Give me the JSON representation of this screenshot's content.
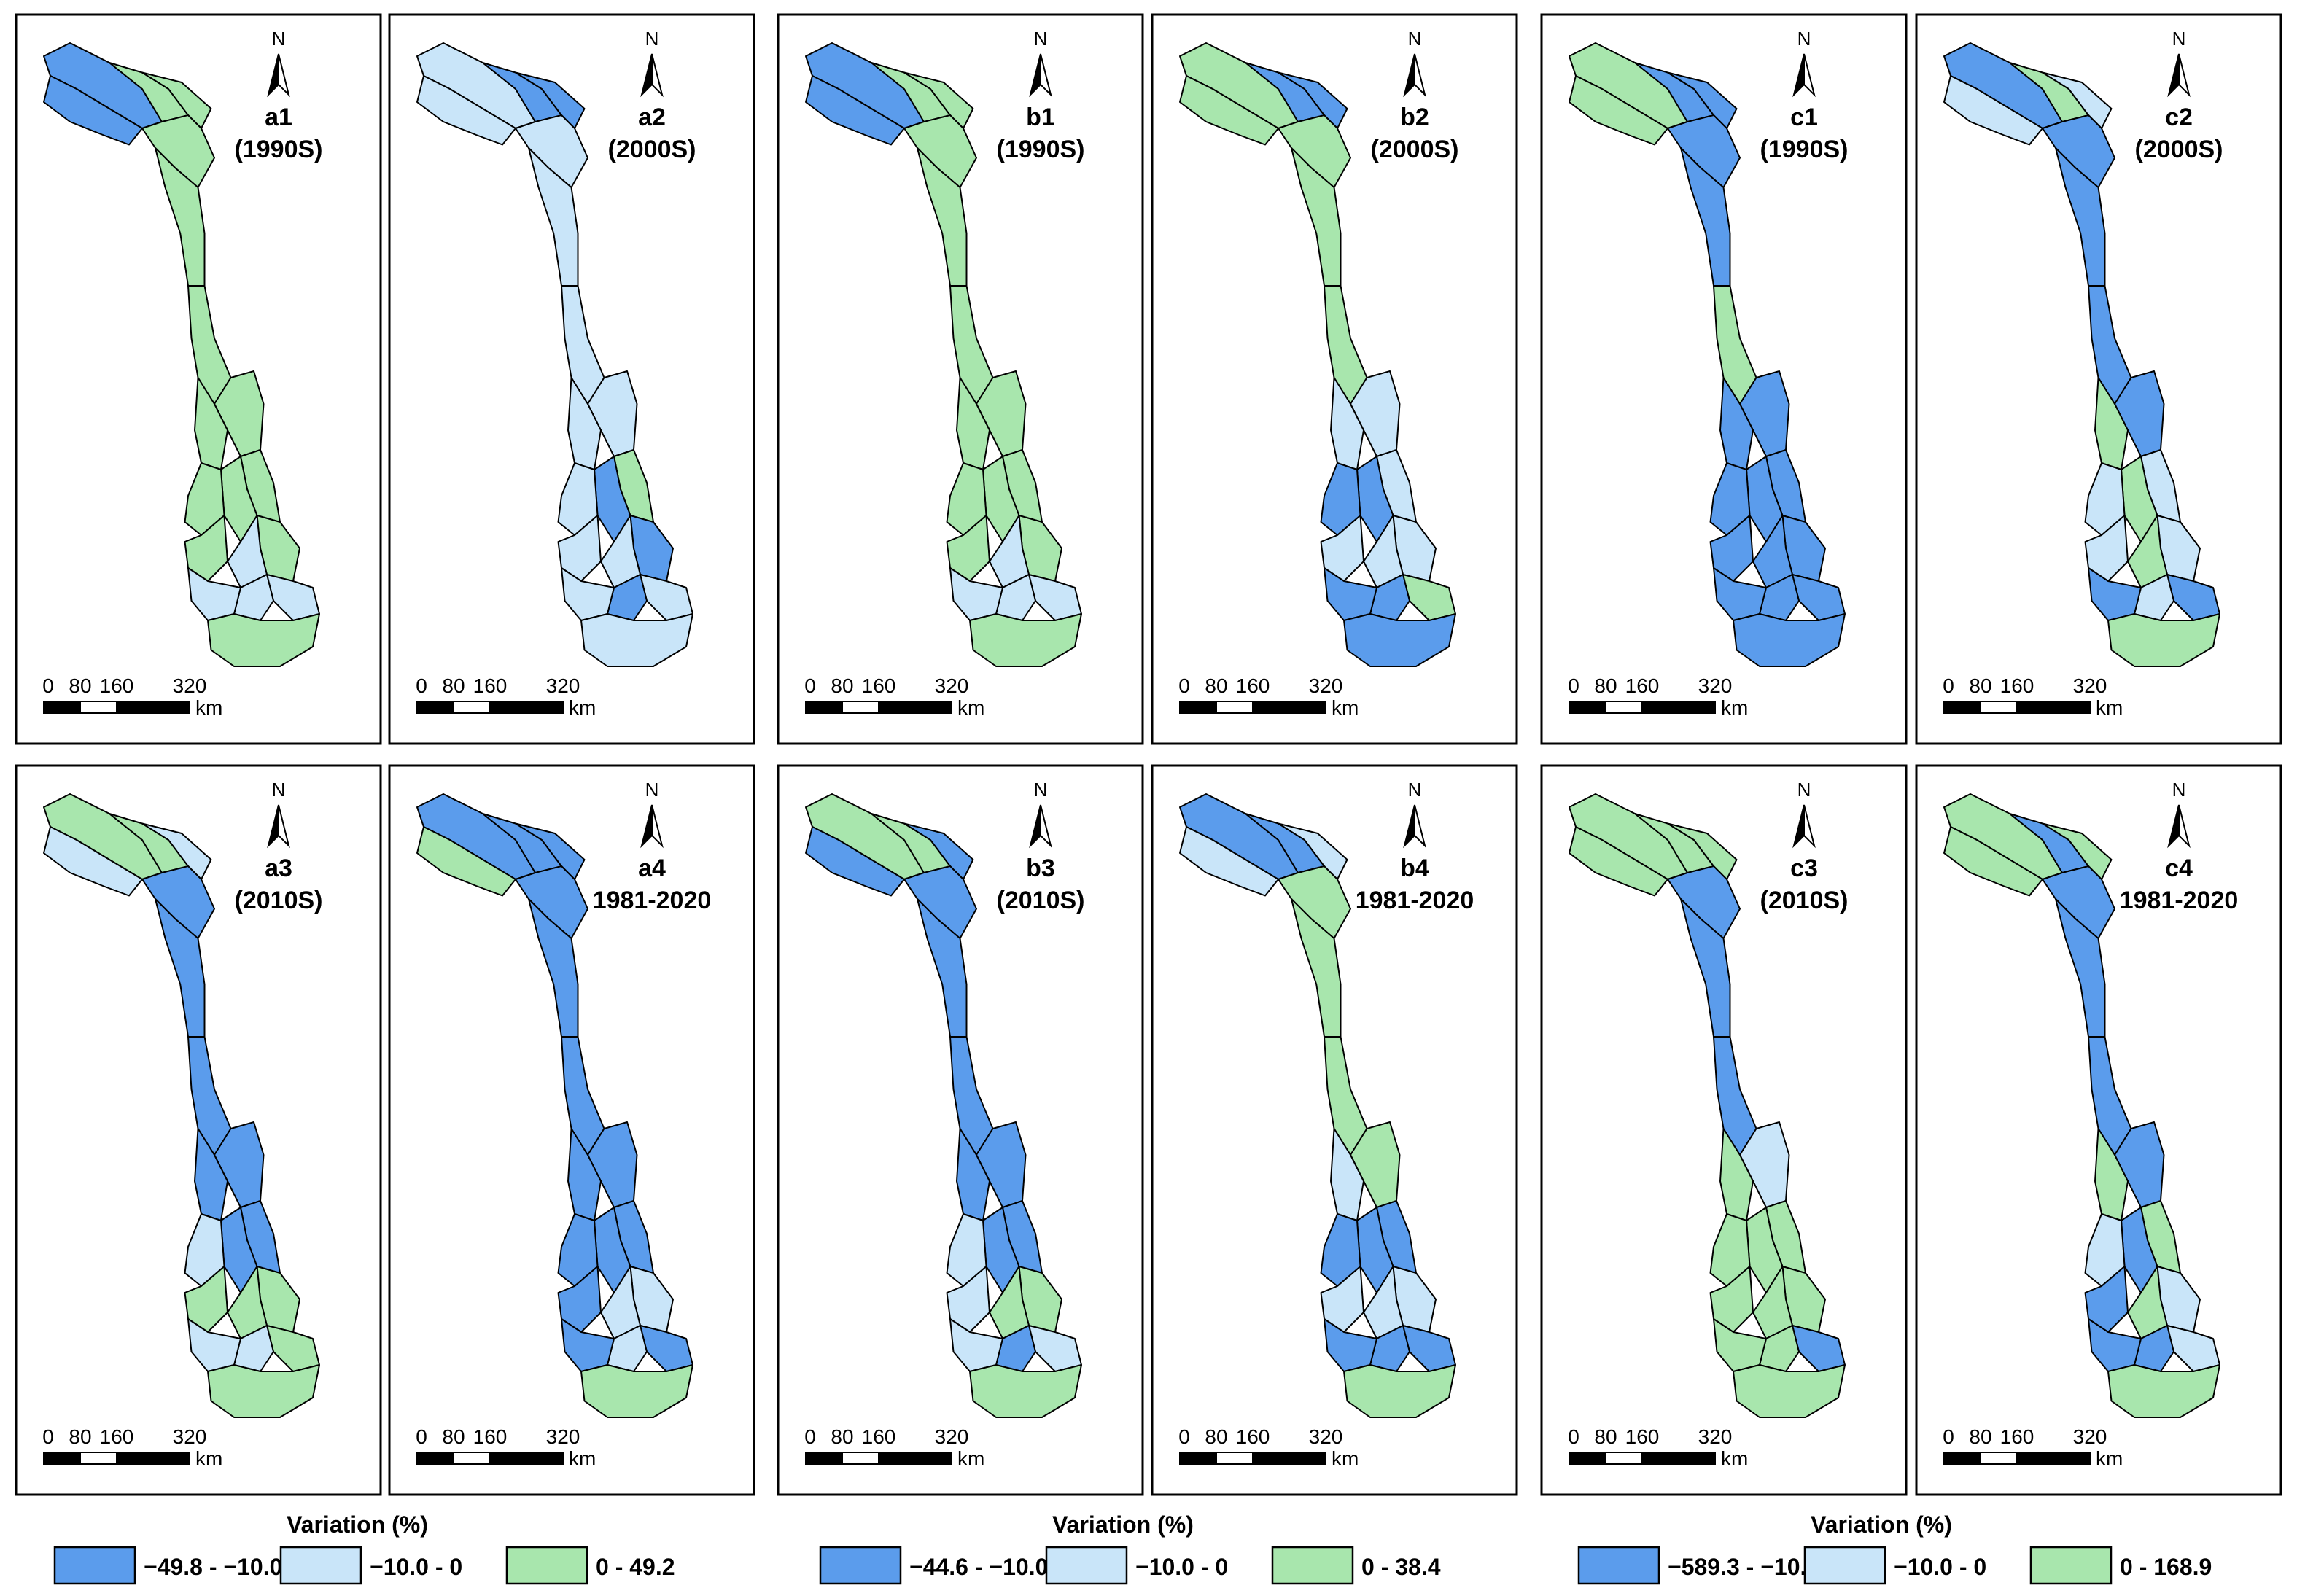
{
  "colors": {
    "low": "#5b9cec",
    "mid": "#c9e5f9",
    "high": "#a8e6ad",
    "outline": "#000000"
  },
  "north_arrow": {
    "label": "N"
  },
  "scale_bar": {
    "ticks": [
      "0",
      "80",
      "160",
      "320"
    ],
    "unit": "km"
  },
  "panels": [
    {
      "id": "a1",
      "label": "a1",
      "period": "(1990S)",
      "colors": [
        "low",
        "low",
        "high",
        "high",
        "high",
        "high",
        "high",
        "high",
        "high",
        "high",
        "high",
        "high",
        "high",
        "mid",
        "high",
        "mid",
        "mid",
        "mid",
        "high"
      ]
    },
    {
      "id": "a2",
      "label": "a2",
      "period": "(2000S)",
      "colors": [
        "mid",
        "mid",
        "low",
        "low",
        "mid",
        "mid",
        "mid",
        "mid",
        "mid",
        "high",
        "low",
        "mid",
        "low",
        "mid",
        "mid",
        "mid",
        "low",
        "mid",
        "mid"
      ]
    },
    {
      "id": "b1",
      "label": "b1",
      "period": "(1990S)",
      "colors": [
        "low",
        "low",
        "high",
        "high",
        "high",
        "high",
        "high",
        "high",
        "high",
        "high",
        "high",
        "high",
        "high",
        "mid",
        "high",
        "mid",
        "mid",
        "mid",
        "high"
      ]
    },
    {
      "id": "b2",
      "label": "b2",
      "period": "(2000S)",
      "colors": [
        "high",
        "high",
        "low",
        "low",
        "high",
        "high",
        "high",
        "mid",
        "mid",
        "mid",
        "low",
        "low",
        "mid",
        "mid",
        "mid",
        "high",
        "low",
        "low",
        "low"
      ]
    },
    {
      "id": "c1",
      "label": "c1",
      "period": "(1990S)",
      "colors": [
        "high",
        "high",
        "low",
        "low",
        "low",
        "low",
        "high",
        "low",
        "low",
        "low",
        "low",
        "low",
        "low",
        "low",
        "low",
        "low",
        "low",
        "low",
        "low"
      ]
    },
    {
      "id": "c2",
      "label": "c2",
      "period": "(2000S)",
      "colors": [
        "low",
        "mid",
        "high",
        "mid",
        "low",
        "low",
        "low",
        "low",
        "high",
        "mid",
        "high",
        "mid",
        "mid",
        "high",
        "mid",
        "low",
        "mid",
        "low",
        "high"
      ]
    },
    {
      "id": "a3",
      "label": "a3",
      "period": "(2010S)",
      "colors": [
        "high",
        "mid",
        "high",
        "mid",
        "low",
        "low",
        "low",
        "low",
        "low",
        "low",
        "low",
        "mid",
        "high",
        "high",
        "high",
        "high",
        "mid",
        "mid",
        "high"
      ]
    },
    {
      "id": "a4",
      "label": "a4",
      "period": "1981-2020",
      "colors": [
        "low",
        "high",
        "low",
        "low",
        "low",
        "low",
        "low",
        "low",
        "low",
        "low",
        "low",
        "low",
        "mid",
        "mid",
        "low",
        "low",
        "mid",
        "low",
        "high"
      ]
    },
    {
      "id": "b3",
      "label": "b3",
      "period": "(2010S)",
      "colors": [
        "high",
        "low",
        "high",
        "low",
        "low",
        "low",
        "low",
        "low",
        "low",
        "low",
        "low",
        "mid",
        "high",
        "high",
        "mid",
        "mid",
        "low",
        "mid",
        "high"
      ]
    },
    {
      "id": "b4",
      "label": "b4",
      "period": "1981-2020",
      "colors": [
        "low",
        "mid",
        "low",
        "mid",
        "high",
        "high",
        "high",
        "high",
        "mid",
        "low",
        "low",
        "low",
        "mid",
        "mid",
        "mid",
        "low",
        "low",
        "low",
        "high"
      ]
    },
    {
      "id": "c3",
      "label": "c3",
      "period": "(2010S)",
      "colors": [
        "high",
        "high",
        "high",
        "high",
        "low",
        "low",
        "low",
        "mid",
        "high",
        "high",
        "high",
        "high",
        "high",
        "high",
        "high",
        "low",
        "high",
        "high",
        "high"
      ]
    },
    {
      "id": "c4",
      "label": "c4",
      "period": "1981-2020",
      "colors": [
        "high",
        "high",
        "low",
        "high",
        "low",
        "low",
        "low",
        "low",
        "high",
        "high",
        "low",
        "mid",
        "mid",
        "high",
        "low",
        "mid",
        "low",
        "low",
        "high"
      ]
    }
  ],
  "legends": [
    {
      "title": "Variation (%)",
      "ranges": [
        "−49.8 - −10.0",
        "−10.0 - 0",
        "0 - 49.2"
      ]
    },
    {
      "title": "Variation (%)",
      "ranges": [
        "−44.6 - −10.0",
        "−10.0 - 0",
        "0 - 38.4"
      ]
    },
    {
      "title": "Variation (%)",
      "ranges": [
        "−589.3 - −10.0",
        "−10.0 - 0",
        "0 - 168.9"
      ]
    }
  ]
}
